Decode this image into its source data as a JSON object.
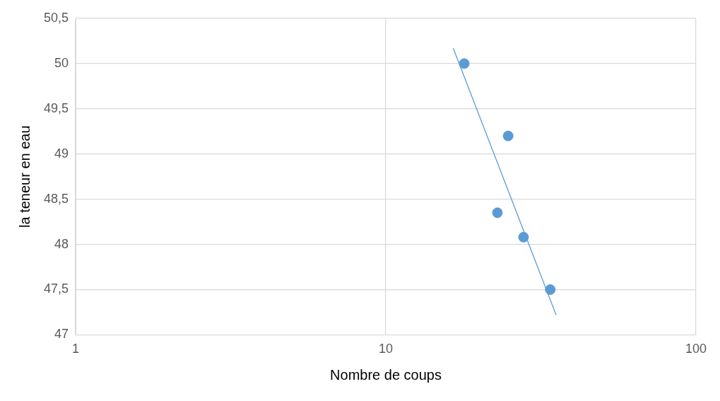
{
  "chart_data": {
    "type": "scatter",
    "xlabel": "Nombre de coups",
    "ylabel": "la teneur en eau",
    "log": "x",
    "xlim": [
      1,
      100
    ],
    "xticks": [
      1,
      10,
      100
    ],
    "ylim": [
      47,
      50.5
    ],
    "yticks": [
      47,
      {
        "value": 47.5,
        "label": "47,5"
      },
      48,
      {
        "value": 48.5,
        "label": "48,5"
      },
      49,
      {
        "value": 49.5,
        "label": "49,5"
      },
      50,
      {
        "value": 50.5,
        "label": "50,5"
      }
    ],
    "grid": true,
    "legend": false,
    "marker": "circle",
    "series": [
      {
        "color": "#5b9bd5",
        "x": [
          17.9,
          24.8,
          22.9,
          27.8,
          33.9
        ],
        "values": [
          50.0,
          49.2,
          48.35,
          48.08,
          47.5
        ]
      },
      {
        "type": "line",
        "color": "#5b9bd5",
        "marker": "none",
        "line_style": "solid",
        "x": [
          16.5,
          35.4
        ],
        "values": [
          50.17,
          47.22
        ]
      }
    ]
  }
}
